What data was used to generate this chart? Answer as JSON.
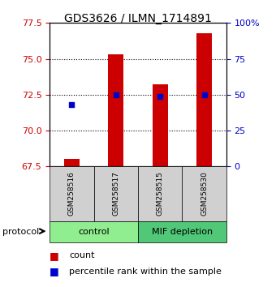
{
  "title": "GDS3626 / ILMN_1714891",
  "samples": [
    "GSM258516",
    "GSM258517",
    "GSM258515",
    "GSM258530"
  ],
  "red_values": [
    68.0,
    75.3,
    73.2,
    76.8
  ],
  "blue_values": [
    71.8,
    72.5,
    72.4,
    72.5
  ],
  "ylim_left": [
    67.5,
    77.5
  ],
  "yticks_left": [
    67.5,
    70.0,
    72.5,
    75.0,
    77.5
  ],
  "yticks_right": [
    0,
    25,
    50,
    75,
    100
  ],
  "group_control_color": "#90EE90",
  "group_mif_color": "#50C878",
  "group_control_label": "control",
  "group_mif_label": "MIF depletion",
  "left_tick_color": "#CC0000",
  "right_tick_color": "#0000CC",
  "bar_color": "#CC0000",
  "dot_color": "#0000CC",
  "sample_box_color": "#d0d0d0",
  "protocol_label": "protocol",
  "legend_count": "count",
  "legend_percentile": "percentile rank within the sample"
}
